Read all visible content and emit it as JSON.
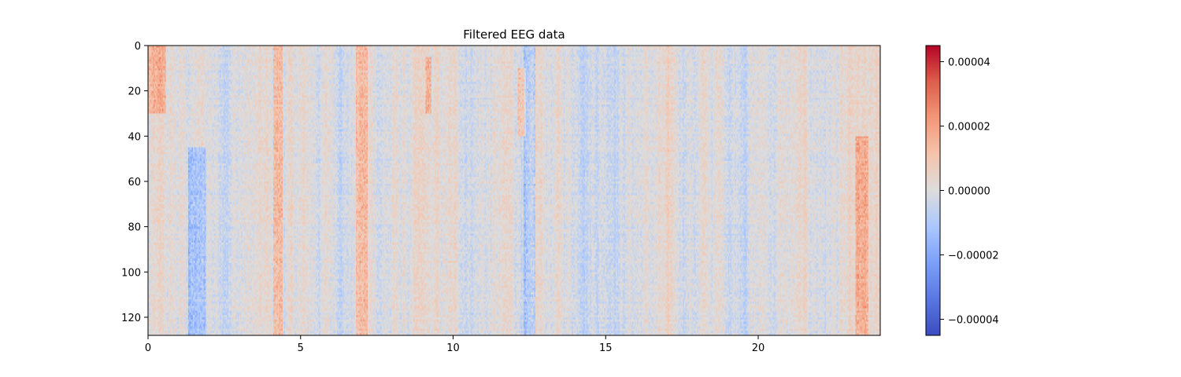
{
  "chart_data": {
    "type": "heatmap",
    "title": "Filtered EEG data",
    "xlabel": "",
    "ylabel": "",
    "xlim": [
      0,
      24
    ],
    "ylim": [
      128,
      0
    ],
    "x_ticks": [
      0,
      5,
      10,
      15,
      20
    ],
    "x_tick_labels": [
      "0",
      "5",
      "10",
      "15",
      "20"
    ],
    "y_ticks": [
      0,
      20,
      40,
      60,
      80,
      100,
      120
    ],
    "y_tick_labels": [
      "0",
      "20",
      "40",
      "60",
      "80",
      "100",
      "120"
    ],
    "n_channels": 128,
    "colormap": "coolwarm",
    "color_range": [
      -4.5e-05,
      4.5e-05
    ],
    "colorbar": {
      "ticks": [
        4e-05,
        2e-05,
        0.0,
        -2e-05,
        -4e-05
      ],
      "tick_labels": [
        "0.00004",
        "0.00002",
        "0.00000",
        "−0.00002",
        "−0.00004"
      ]
    },
    "notable_time_bands": [
      {
        "t_start": 0.0,
        "t_end": 0.6,
        "sign": "positive",
        "rows": [
          0,
          30
        ]
      },
      {
        "t_start": 1.3,
        "t_end": 1.9,
        "sign": "negative",
        "rows": [
          45,
          128
        ]
      },
      {
        "t_start": 4.1,
        "t_end": 4.4,
        "sign": "positive",
        "rows": [
          0,
          128
        ]
      },
      {
        "t_start": 6.8,
        "t_end": 7.2,
        "sign": "positive",
        "rows": [
          0,
          128
        ]
      },
      {
        "t_start": 9.1,
        "t_end": 9.3,
        "sign": "positive",
        "rows": [
          5,
          30
        ]
      },
      {
        "t_start": 12.1,
        "t_end": 12.4,
        "sign": "positive",
        "rows": [
          10,
          40
        ]
      },
      {
        "t_start": 12.3,
        "t_end": 12.7,
        "sign": "negative",
        "rows": [
          0,
          128
        ]
      },
      {
        "t_start": 23.2,
        "t_end": 23.6,
        "sign": "positive",
        "rows": [
          40,
          128
        ]
      }
    ],
    "colors": {
      "negative_extreme": "#3b4cc0",
      "neutral": "#dddddd",
      "positive_extreme": "#b40426"
    }
  }
}
